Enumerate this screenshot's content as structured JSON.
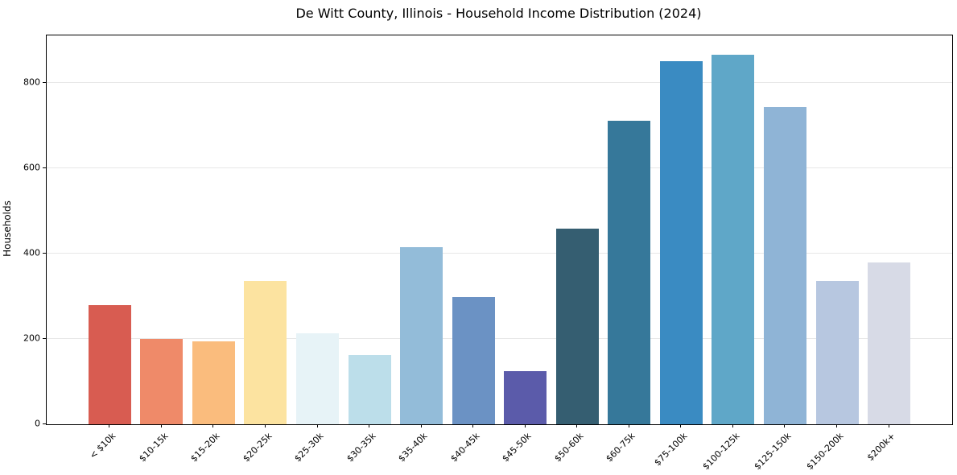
{
  "chart_data": {
    "type": "bar",
    "title": "De Witt County, Illinois - Household Income Distribution (2024)",
    "xlabel": "",
    "ylabel": "Households",
    "ylim": [
      0,
      912
    ],
    "yticks": [
      0,
      200,
      400,
      600,
      800
    ],
    "grid": "horizontal",
    "grid_color": "#e7e7e7",
    "legend": "none",
    "background": "#ffffff",
    "spine_color": "#000000",
    "categories": [
      "< $10k",
      "$10-15k",
      "$15-20k",
      "$20-25k",
      "$25-30k",
      "$30-35k",
      "$35-40k",
      "$40-45k",
      "$45-50k",
      "$50-60k",
      "$60-75k",
      "$75-100k",
      "$100-125k",
      "$125-150k",
      "$150-200k",
      "$200k+"
    ],
    "values": [
      280,
      201,
      195,
      337,
      214,
      163,
      416,
      298,
      124,
      459,
      712,
      852,
      866,
      744,
      336,
      380
    ],
    "bar_colors": [
      "#d85c51",
      "#ef8a69",
      "#fabc7d",
      "#fce3a0",
      "#e7f3f7",
      "#bcdeea",
      "#93bcd9",
      "#6b92c4",
      "#5b5baa",
      "#355e71",
      "#36789a",
      "#3a8bc2",
      "#5fa7c8",
      "#8fb4d6",
      "#b7c7e0",
      "#d7dae6"
    ]
  }
}
